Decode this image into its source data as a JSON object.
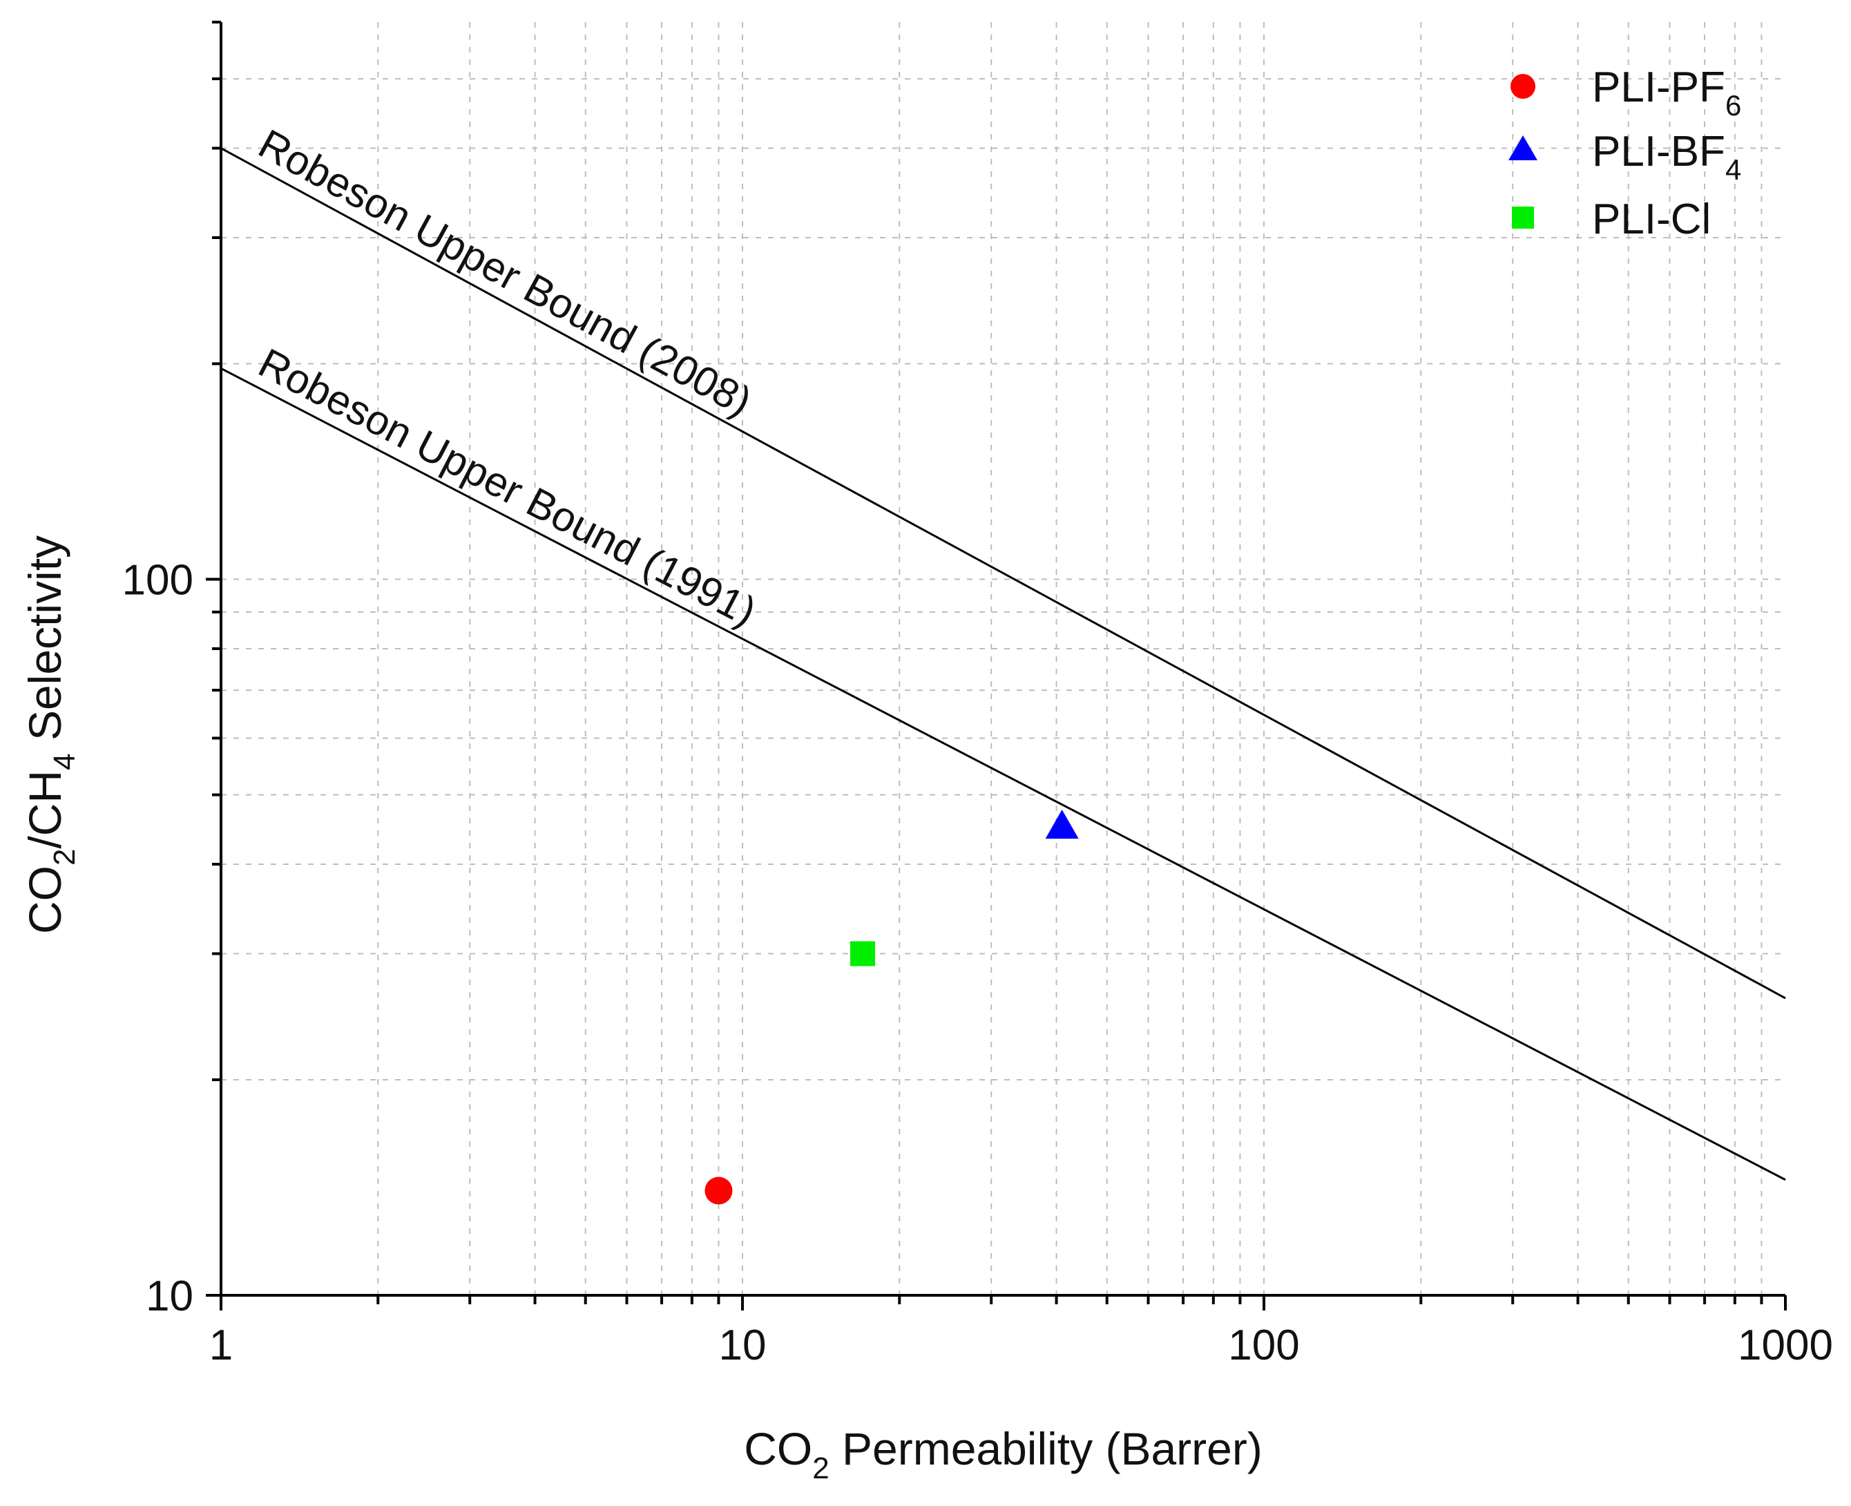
{
  "chart_data": {
    "type": "scatter",
    "title": "",
    "xlabel": {
      "pre": "CO",
      "sub": "2",
      "post": " Permeability (Barrer)"
    },
    "ylabel": {
      "pre": "CO",
      "sub1": "2",
      "mid": "/CH",
      "sub2": "4",
      "post": " Selectivity"
    },
    "x_scale": "log",
    "y_scale": "log",
    "xlim": [
      1,
      1000
    ],
    "ylim": [
      10,
      600
    ],
    "x_ticks": [
      {
        "value": 1,
        "label": "1"
      },
      {
        "value": 10,
        "label": "10"
      },
      {
        "value": 100,
        "label": "100"
      },
      {
        "value": 1000,
        "label": "1000"
      }
    ],
    "y_ticks": [
      {
        "value": 10,
        "label": "10"
      },
      {
        "value": 100,
        "label": "100"
      }
    ],
    "grid": true,
    "legend_position": "top-right",
    "series": [
      {
        "name": "PLI-PF",
        "name_sub": "6",
        "marker": "circle",
        "color": "#ff0000",
        "points": [
          {
            "x": 9,
            "y": 14
          }
        ]
      },
      {
        "name": "PLI-BF",
        "name_sub": "4",
        "marker": "triangle",
        "color": "#0000ff",
        "points": [
          {
            "x": 41,
            "y": 45
          }
        ]
      },
      {
        "name": "PLI-Cl",
        "name_sub": "",
        "marker": "square",
        "color": "#00ee00",
        "points": [
          {
            "x": 17,
            "y": 30
          }
        ]
      }
    ],
    "lines": [
      {
        "label": "Robeson Upper Bound (2008)",
        "x_start": 1,
        "y_start": 400,
        "x_end": 1000,
        "y_end": 26,
        "color": "#000000"
      },
      {
        "label": "Robeson Upper Bound (1991)",
        "x_start": 1,
        "y_start": 197,
        "x_end": 1000,
        "y_end": 14.5,
        "color": "#000000"
      }
    ]
  }
}
